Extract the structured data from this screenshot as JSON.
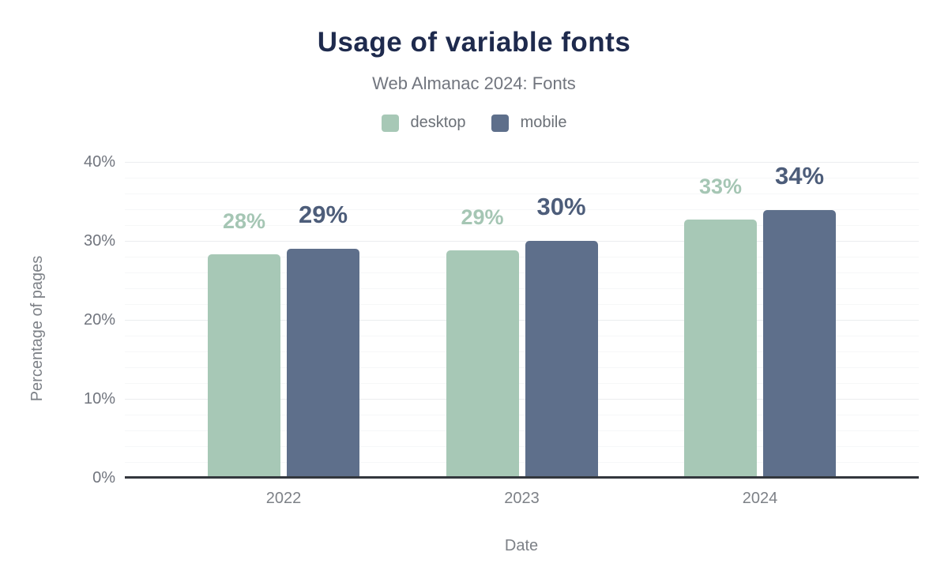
{
  "header": {
    "title": "Usage of variable fonts",
    "subtitle": "Web Almanac 2024: Fonts"
  },
  "chart_data": {
    "type": "bar",
    "title": "Usage of variable fonts",
    "subtitle": "Web Almanac 2024: Fonts",
    "categories": [
      "2022",
      "2023",
      "2024"
    ],
    "series": [
      {
        "name": "desktop",
        "values": [
          28,
          29,
          33
        ],
        "values_precise": [
          28.3,
          28.8,
          32.7
        ],
        "labels": [
          "28%",
          "29%",
          "33%"
        ],
        "color": "#a7c8b6",
        "label_color": "#a5c6b4",
        "label_font_size": 27
      },
      {
        "name": "mobile",
        "values": [
          29,
          30,
          34
        ],
        "values_precise": [
          29.0,
          30.0,
          33.9
        ],
        "labels": [
          "29%",
          "30%",
          "34%"
        ],
        "color": "#5e6f8b",
        "label_color": "#4d5d7a",
        "label_font_size": 31
      }
    ],
    "xlabel": "Date",
    "ylabel": "Percentage of pages",
    "ylim": [
      0,
      40
    ],
    "yticks": [
      0,
      10,
      20,
      30,
      40
    ],
    "ytick_labels": [
      "0%",
      "10%",
      "20%",
      "30%",
      "40%"
    ],
    "minor_grid_step": 2,
    "grid": "horizontal-only",
    "legend_position": "top-center",
    "colors": {
      "title": "#1e2a4d",
      "subtitle": "#71757e",
      "axis_text": "#7d8187",
      "axis_line": "#33373d",
      "grid_major": "#ebedef",
      "grid_minor": "#f6f7f8"
    }
  }
}
